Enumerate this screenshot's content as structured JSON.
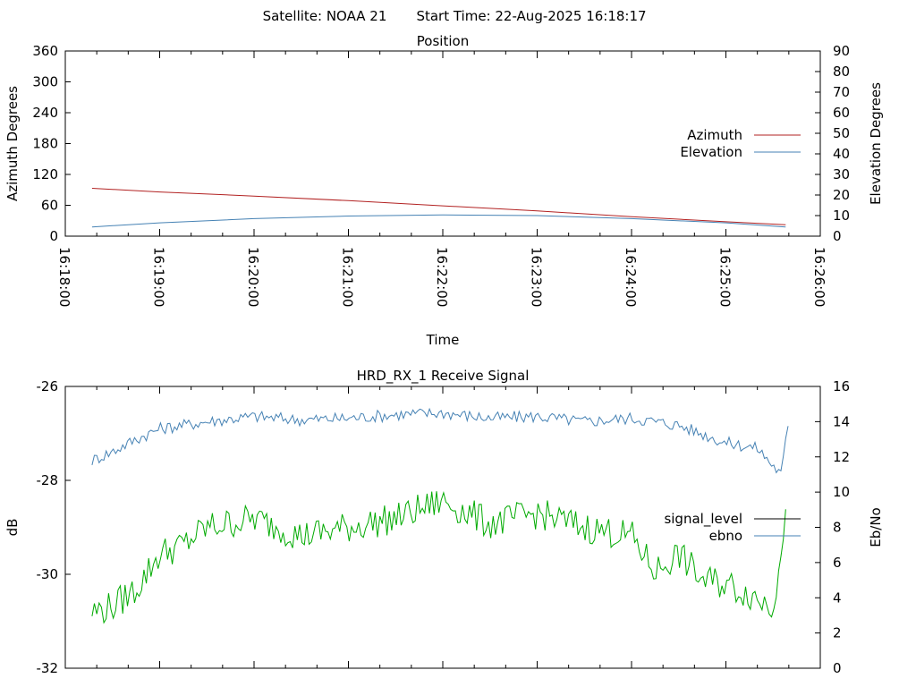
{
  "header": {
    "satellite": "Satellite: NOAA 21",
    "start_time": "Start Time: 22-Aug-2025 16:18:17"
  },
  "chart_data": [
    {
      "type": "line",
      "title": "Position",
      "xlabel": "Time",
      "ylabel": "Azimuth Degrees",
      "y2label": "Elevation Degrees",
      "x_ticks": [
        "16:18:00",
        "16:19:00",
        "16:20:00",
        "16:21:00",
        "16:22:00",
        "16:23:00",
        "16:24:00",
        "16:25:00",
        "16:26:00"
      ],
      "ylim": [
        0,
        360
      ],
      "yticks": [
        0,
        60,
        120,
        180,
        240,
        300,
        360
      ],
      "y2lim": [
        0,
        90
      ],
      "y2ticks": [
        0,
        10,
        20,
        30,
        40,
        50,
        60,
        70,
        80,
        90
      ],
      "xlim": [
        "16:18:00",
        "16:26:00"
      ],
      "legend": "right",
      "grid": false,
      "series": [
        {
          "name": "Azimuth",
          "axis": "left",
          "color": "#b22222",
          "x": [
            "16:18:17",
            "16:19:00",
            "16:20:00",
            "16:21:00",
            "16:22:00",
            "16:23:00",
            "16:24:00",
            "16:25:00",
            "16:25:38"
          ],
          "values": [
            93,
            86,
            78,
            69,
            59,
            49,
            38,
            28,
            22
          ]
        },
        {
          "name": "Elevation",
          "axis": "right",
          "color": "#4682b4",
          "x": [
            "16:18:17",
            "16:19:00",
            "16:20:00",
            "16:21:00",
            "16:22:00",
            "16:23:00",
            "16:24:00",
            "16:25:00",
            "16:25:38"
          ],
          "values": [
            4.5,
            6.5,
            8.5,
            9.8,
            10.3,
            10,
            8.5,
            6.5,
            4.5
          ]
        }
      ]
    },
    {
      "type": "line",
      "title": "HRD_RX_1 Receive Signal",
      "xlabel": "",
      "ylabel": "dB",
      "y2label": "Eb/No",
      "ylim": [
        -32,
        -26
      ],
      "yticks": [
        -32,
        -30,
        -28,
        -26
      ],
      "y2lim": [
        0,
        16
      ],
      "y2ticks": [
        0,
        2,
        4,
        6,
        8,
        10,
        12,
        14,
        16
      ],
      "xlim": [
        "16:18:00",
        "16:26:00"
      ],
      "legend": "right",
      "grid": false,
      "series": [
        {
          "name": "signal_level",
          "axis": "left",
          "color": "#000000",
          "x": [],
          "values": []
        },
        {
          "name": "ebno",
          "axis": "right",
          "color": "#4682b4",
          "x": [
            "16:18:17",
            "16:18:30",
            "16:18:45",
            "16:19:00",
            "16:19:30",
            "16:20:00",
            "16:20:30",
            "16:21:00",
            "16:21:30",
            "16:22:00",
            "16:22:30",
            "16:23:00",
            "16:23:30",
            "16:24:00",
            "16:24:30",
            "16:25:00",
            "16:25:20",
            "16:25:35",
            "16:25:40"
          ],
          "values": [
            11.8,
            12.3,
            13.0,
            13.6,
            14.0,
            14.3,
            14.1,
            14.2,
            14.4,
            14.5,
            14.2,
            14.3,
            14.0,
            14.2,
            13.8,
            12.8,
            12.5,
            11.0,
            14.0
          ]
        },
        {
          "name": "",
          "axis": "right",
          "color": "#00aa00",
          "x": [
            "16:18:17",
            "16:18:30",
            "16:18:45",
            "16:19:00",
            "16:19:15",
            "16:19:30",
            "16:20:00",
            "16:20:30",
            "16:21:00",
            "16:21:30",
            "16:22:00",
            "16:22:30",
            "16:23:00",
            "16:23:30",
            "16:24:00",
            "16:24:15",
            "16:24:30",
            "16:24:45",
            "16:25:00",
            "16:25:15",
            "16:25:30",
            "16:25:38"
          ],
          "values": [
            3.2,
            3.5,
            4.5,
            6.5,
            7.0,
            8.0,
            8.5,
            7.5,
            8.0,
            8.5,
            9.5,
            8.2,
            8.8,
            8.0,
            7.5,
            5.5,
            6.5,
            5.0,
            4.8,
            4.2,
            3.5,
            9.0
          ]
        }
      ]
    }
  ],
  "colors": {
    "azimuth": "#b22222",
    "elevation": "#4682b4",
    "signal": "#00aa00",
    "ebno": "#4682b4"
  }
}
